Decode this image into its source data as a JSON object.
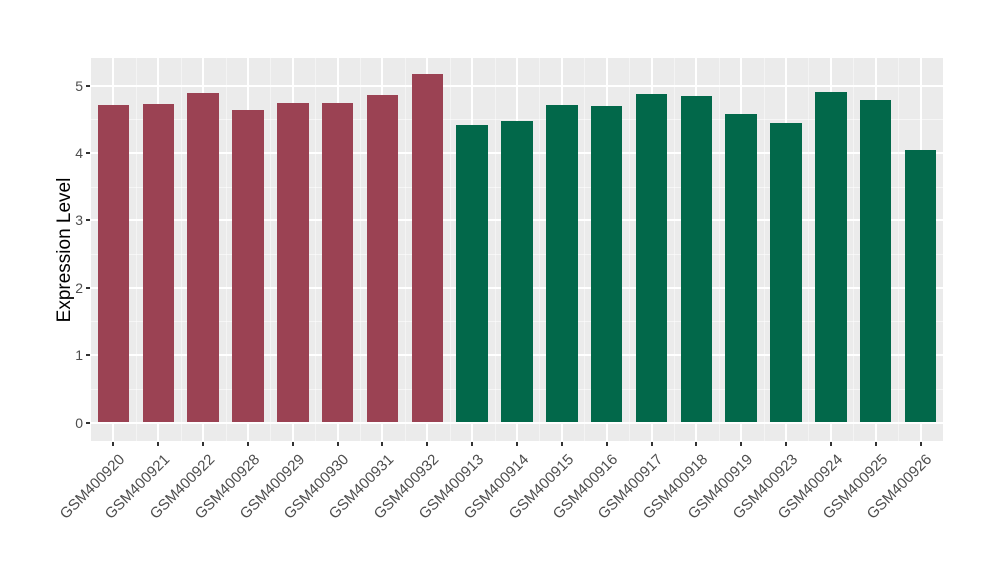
{
  "chart_data": {
    "type": "bar",
    "title": "",
    "xlabel": "",
    "ylabel": "Expression Level",
    "ylim": [
      0,
      5.42
    ],
    "y_ticks": [
      0,
      1,
      2,
      3,
      4,
      5
    ],
    "y_minor_ticks": [
      0.5,
      1.5,
      2.5,
      3.5,
      4.5
    ],
    "grid": "on",
    "legend_position": "none",
    "categories": [
      "GSM400920",
      "GSM400921",
      "GSM400922",
      "GSM400928",
      "GSM400929",
      "GSM400930",
      "GSM400931",
      "GSM400932",
      "GSM400913",
      "GSM400914",
      "GSM400915",
      "GSM400916",
      "GSM400917",
      "GSM400918",
      "GSM400919",
      "GSM400923",
      "GSM400924",
      "GSM400925",
      "GSM400926"
    ],
    "values": [
      4.71,
      4.73,
      4.89,
      4.63,
      4.74,
      4.74,
      4.86,
      5.17,
      4.42,
      4.47,
      4.71,
      4.7,
      4.88,
      4.84,
      4.58,
      4.44,
      4.91,
      4.78,
      4.04
    ],
    "groups": [
      "group1",
      "group1",
      "group1",
      "group1",
      "group1",
      "group1",
      "group1",
      "group1",
      "group2",
      "group2",
      "group2",
      "group2",
      "group2",
      "group2",
      "group2",
      "group2",
      "group2",
      "group2",
      "group2"
    ],
    "group_colors": {
      "group1": "#9B4253",
      "group2": "#02684A"
    },
    "colors": {
      "panel_background": "#EBEBEB",
      "gridline": "#FFFFFF",
      "axis_text": "#4D4D4D",
      "axis_title": "#000000",
      "tick_mark": "#333333"
    }
  }
}
